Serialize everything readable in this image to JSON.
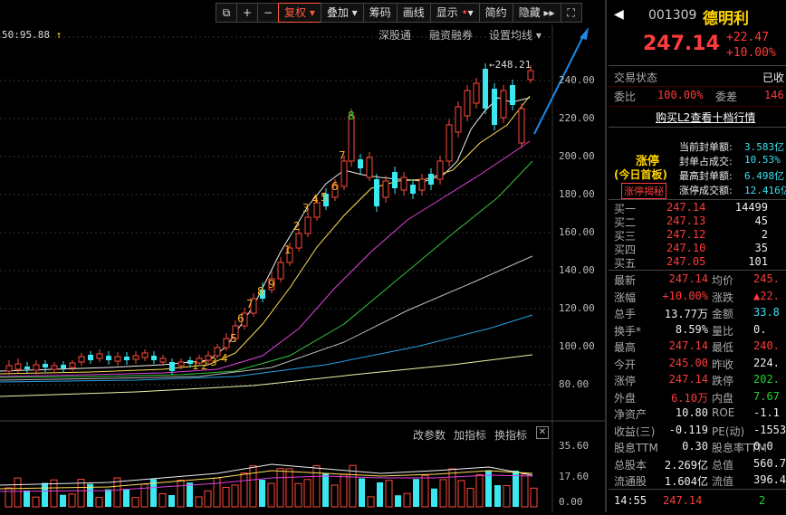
{
  "toolbar": {
    "buttons": [
      "复权",
      "叠加",
      "筹码",
      "画线",
      "显示",
      "简约",
      "隐藏 ▸▸"
    ],
    "restore_label": "复权 ▾",
    "overlay_label": "叠加 ▾",
    "chips_label": "筹码",
    "draw_label": "画线",
    "show_label": "显示",
    "simple_label": "简约",
    "hide_label": "隐藏"
  },
  "chart": {
    "low_marker": "50:95.88",
    "links": {
      "shengu": "深股通",
      "rongzi": "融资融券",
      "set_ma": "设置均线"
    },
    "high_marker": "248.21",
    "price_ticks": [
      "240.00",
      "220.00",
      "200.00",
      "180.00",
      "160.00",
      "140.00",
      "120.00",
      "100.00",
      "80.00"
    ],
    "seq_labels": [
      "1",
      "2",
      "3",
      "4",
      "5",
      "6",
      "7",
      "8",
      "9",
      "1",
      "2",
      "3",
      "4",
      "5",
      "6",
      "7",
      "8",
      "9"
    ],
    "indicator_links": {
      "change_params": "改参数",
      "add_indicator": "加指标",
      "switch_indicator": "换指标"
    },
    "volume_ticks": [
      "35.60",
      "17.60",
      "0.00"
    ]
  },
  "quote": {
    "code": "001309",
    "name": "德明利",
    "price": "247.14",
    "change": "+22.47",
    "change_pct": "+10.00%",
    "status_label": "交易状态",
    "status_value": "已收",
    "bid_ratio_label": "委比",
    "bid_ratio_value": "100.00%",
    "bid_diff_label": "委差",
    "bid_diff_value": "146",
    "buy_l2_link": "购买L2查看十档行情",
    "limit_up_title": "涨停",
    "limit_up_sub": "(今日首板)",
    "limit_up_btn": "涨停揭秘",
    "seal": [
      {
        "label": "当前封单额:",
        "value": "3.583亿"
      },
      {
        "label": "封单占成交:",
        "value": "10.53%"
      },
      {
        "label": "最高封单额:",
        "value": "6.498亿"
      },
      {
        "label": "涨停成交额:",
        "value": "12.416亿"
      }
    ],
    "bids": [
      {
        "label": "买一",
        "price": "247.14",
        "vol": "14499"
      },
      {
        "label": "买二",
        "price": "247.13",
        "vol": "45"
      },
      {
        "label": "买三",
        "price": "247.12",
        "vol": "2"
      },
      {
        "label": "买四",
        "price": "247.10",
        "vol": "35"
      },
      {
        "label": "买五",
        "price": "247.05",
        "vol": "101"
      }
    ],
    "stats": [
      {
        "l1": "最新",
        "v1": "247.14",
        "l2": "均价",
        "v2": "245.",
        "c1": "red",
        "c2": "red"
      },
      {
        "l1": "涨幅",
        "v1": "+10.00%",
        "l2": "涨跌",
        "v2": "▲22.",
        "c1": "red",
        "c2": "red"
      },
      {
        "l1": "总手",
        "v1": "13.77万",
        "l2": "金额",
        "v2": "33.8",
        "c1": "white",
        "c2": "cyan"
      },
      {
        "l1": "换手*",
        "v1": "8.59%",
        "l2": "量比",
        "v2": "0.",
        "c1": "white",
        "c2": "white"
      },
      {
        "l1": "最高",
        "v1": "247.14",
        "l2": "最低",
        "v2": "240.",
        "c1": "red",
        "c2": "red"
      },
      {
        "l1": "今开",
        "v1": "245.00",
        "l2": "昨收",
        "v2": "224.",
        "c1": "red",
        "c2": "white"
      },
      {
        "l1": "涨停",
        "v1": "247.14",
        "l2": "跌停",
        "v2": "202.",
        "c1": "red",
        "c2": "green"
      },
      {
        "l1": "外盘",
        "v1": "6.10万",
        "l2": "内盘",
        "v2": "7.67",
        "c1": "red",
        "c2": "green"
      },
      {
        "l1": "净资产",
        "v1": "10.80",
        "l2": "ROE",
        "v2": "-1.1",
        "c1": "white",
        "c2": "white"
      },
      {
        "l1": "收益(三)",
        "v1": "-0.119",
        "l2": "PE(动)",
        "v2": "-1553",
        "c1": "white",
        "c2": "white"
      },
      {
        "l1": "股息TTM",
        "v1": "0.30",
        "l2": "股息率TTM",
        "v2": "0.0",
        "c1": "white",
        "c2": "white"
      },
      {
        "l1": "总股本",
        "v1": "2.269亿",
        "l2": "总值",
        "v2": "560.7",
        "c1": "white",
        "c2": "white"
      },
      {
        "l1": "流通股",
        "v1": "1.604亿",
        "l2": "流值",
        "v2": "396.4",
        "c1": "white",
        "c2": "white"
      }
    ],
    "tick": {
      "time": "14:55",
      "price": "247.14",
      "vol": "2"
    }
  }
}
